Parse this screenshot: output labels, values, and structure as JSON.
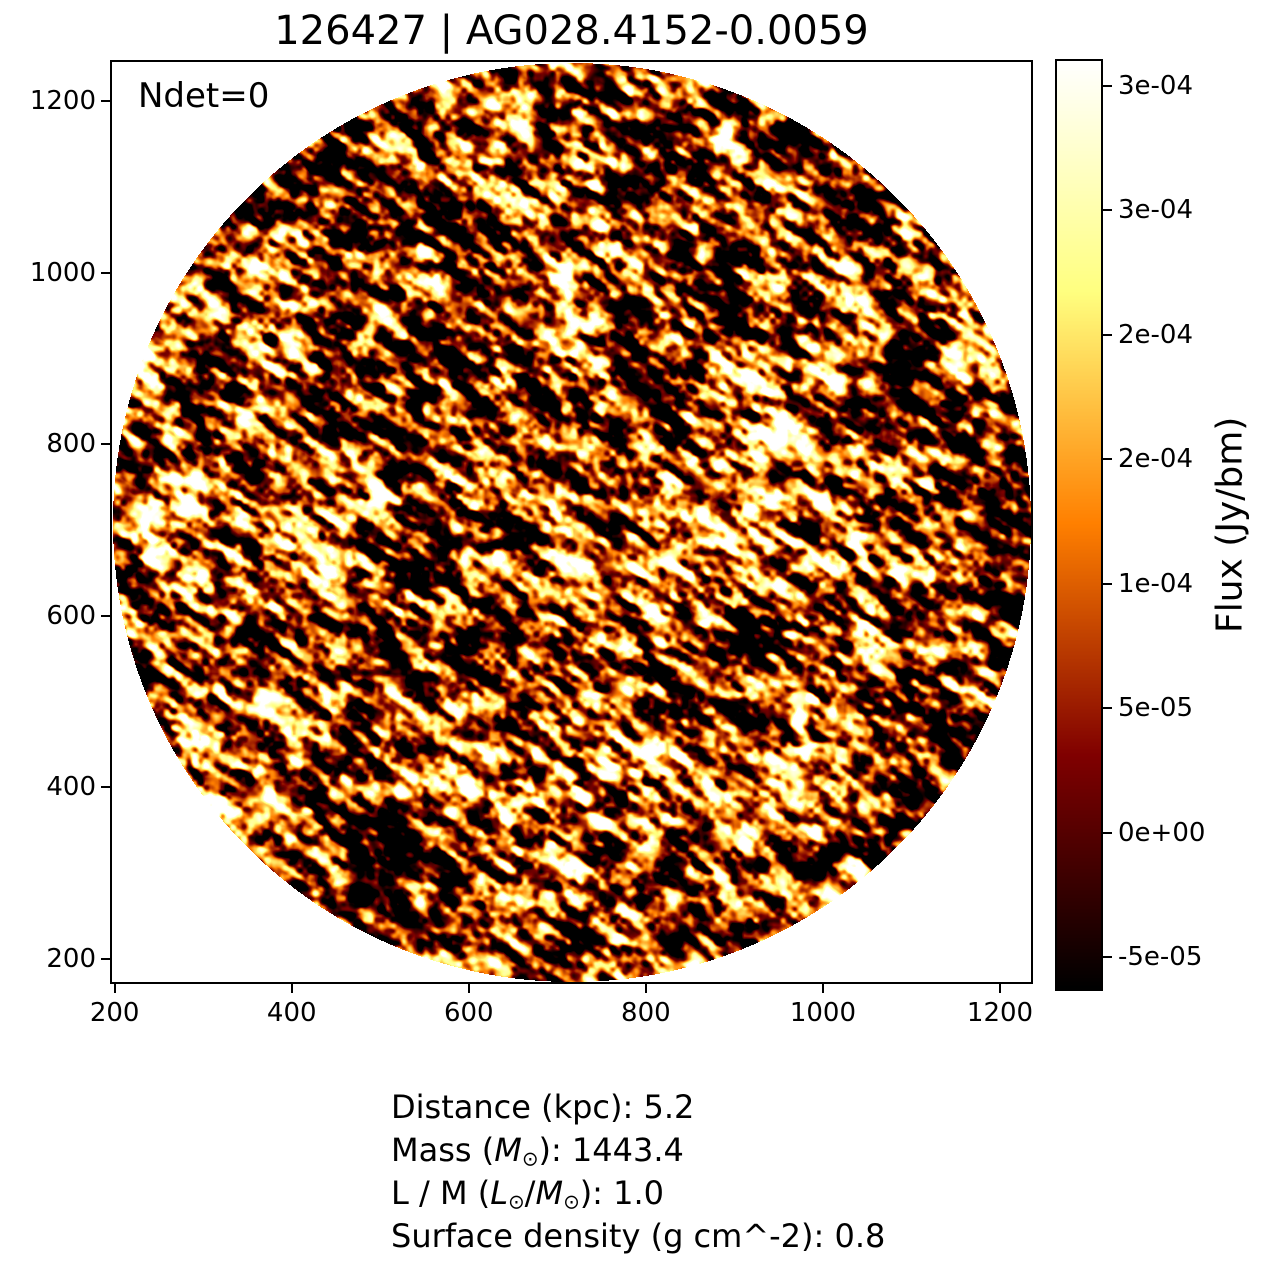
{
  "figure": {
    "background_color": "#ffffff",
    "text_color": "#000000"
  },
  "chart_data": {
    "type": "heatmap",
    "title": "126427 | AG028.4152-0.0059",
    "annotation": "Ndet=0",
    "x_ticks": [
      200,
      400,
      600,
      800,
      1000,
      1200
    ],
    "y_ticks": [
      200,
      400,
      600,
      800,
      1000,
      1200
    ],
    "xlim": [
      197,
      1235
    ],
    "ylim": [
      173,
      1246
    ],
    "grid": false,
    "image": {
      "description": "circular disk of granular instrument noise (no detections), masked to white outside the circle",
      "shape": "circle",
      "colormap": "afmhot",
      "colormap_colors": [
        "#000000",
        "#800000",
        "#ff8000",
        "#ffff80",
        "#ffffff"
      ]
    },
    "colorbar": {
      "label": "Flux (Jy/bm)",
      "position": "right",
      "vmin": -6.27e-05,
      "vmax": 0.00031,
      "ticks": [
        {
          "value": 0.0003,
          "label": "3e-04"
        },
        {
          "value": 0.00025,
          "label": "3e-04"
        },
        {
          "value": 0.0002,
          "label": "2e-04"
        },
        {
          "value": 0.00015,
          "label": "2e-04"
        },
        {
          "value": 0.0001,
          "label": "1e-04"
        },
        {
          "value": 5e-05,
          "label": "5e-05"
        },
        {
          "value": 0.0,
          "label": "0e+00"
        },
        {
          "value": -5e-05,
          "label": "-5e-05"
        }
      ]
    }
  },
  "stats": {
    "distance_kpc": "5.2",
    "mass_msun": "1443.4",
    "l_over_m": "1.0",
    "surface_density_g_cm2": "0.8"
  },
  "footer": {
    "lines": [
      {
        "name": "distance-line",
        "segments": [
          {
            "t": "Distance (kpc): 5.2"
          }
        ]
      },
      {
        "name": "mass-line",
        "segments": [
          {
            "t": "Mass ("
          },
          {
            "t": "M",
            "i": true
          },
          {
            "t": "⊙",
            "sub": true
          },
          {
            "t": "): 1443.4"
          }
        ]
      },
      {
        "name": "l-over-m-line",
        "segments": [
          {
            "t": "L / M ("
          },
          {
            "t": "L",
            "i": true
          },
          {
            "t": "⊙",
            "sub": true
          },
          {
            "t": "/"
          },
          {
            "t": "M",
            "i": true
          },
          {
            "t": "⊙",
            "sub": true
          },
          {
            "t": "): 1.0"
          }
        ]
      },
      {
        "name": "surface-density-line",
        "segments": [
          {
            "t": "Surface density (g cm^-2): 0.8"
          }
        ]
      }
    ]
  }
}
